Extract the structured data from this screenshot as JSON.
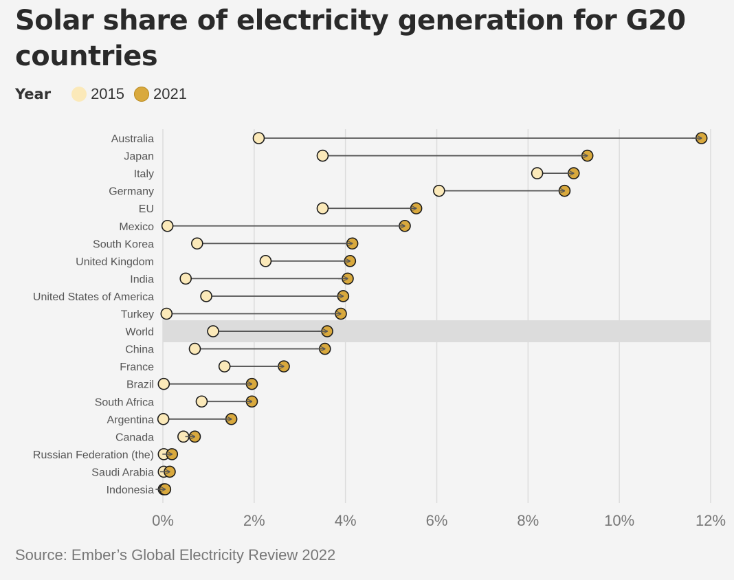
{
  "title": "Solar share of electricity generation for G20 countries",
  "legend": {
    "title": "Year",
    "items": [
      {
        "label": "2015",
        "color": "#fbe9b9"
      },
      {
        "label": "2021",
        "color": "#d9a93d"
      }
    ]
  },
  "source": "Source: Ember’s Global Electricity Review 2022",
  "chart_data": {
    "type": "dumbbell",
    "x_tick_labels": [
      "0%",
      "2%",
      "4%",
      "6%",
      "8%",
      "10%",
      "12%"
    ],
    "x_ticks": [
      0,
      2,
      4,
      6,
      8,
      10,
      12
    ],
    "xlim": [
      0,
      12
    ],
    "highlight": "World",
    "grid": true,
    "series": [
      {
        "name": "2015",
        "color": "#fbe9b9"
      },
      {
        "name": "2021",
        "color": "#d9a93d"
      }
    ],
    "rows": [
      {
        "label": "Australia",
        "start": 2.1,
        "end": 11.8
      },
      {
        "label": "Japan",
        "start": 3.5,
        "end": 9.3
      },
      {
        "label": "Italy",
        "start": 8.2,
        "end": 9.0
      },
      {
        "label": "Germany",
        "start": 6.05,
        "end": 8.8
      },
      {
        "label": "EU",
        "start": 3.5,
        "end": 5.55
      },
      {
        "label": "Mexico",
        "start": 0.1,
        "end": 5.3
      },
      {
        "label": "South Korea",
        "start": 0.75,
        "end": 4.15
      },
      {
        "label": "United Kingdom",
        "start": 2.25,
        "end": 4.1
      },
      {
        "label": "India",
        "start": 0.5,
        "end": 4.05
      },
      {
        "label": "United States of America",
        "start": 0.95,
        "end": 3.95
      },
      {
        "label": "Turkey",
        "start": 0.08,
        "end": 3.9
      },
      {
        "label": "World",
        "start": 1.1,
        "end": 3.6
      },
      {
        "label": "China",
        "start": 0.7,
        "end": 3.55
      },
      {
        "label": "France",
        "start": 1.35,
        "end": 2.65
      },
      {
        "label": "Brazil",
        "start": 0.02,
        "end": 1.95
      },
      {
        "label": "South Africa",
        "start": 0.85,
        "end": 1.95
      },
      {
        "label": "Argentina",
        "start": 0.01,
        "end": 1.5
      },
      {
        "label": "Canada",
        "start": 0.45,
        "end": 0.7
      },
      {
        "label": "Russian Federation (the)",
        "start": 0.02,
        "end": 0.2
      },
      {
        "label": "Saudi Arabia",
        "start": 0.02,
        "end": 0.15
      },
      {
        "label": "Indonesia",
        "start": 0.02,
        "end": 0.05
      }
    ]
  }
}
